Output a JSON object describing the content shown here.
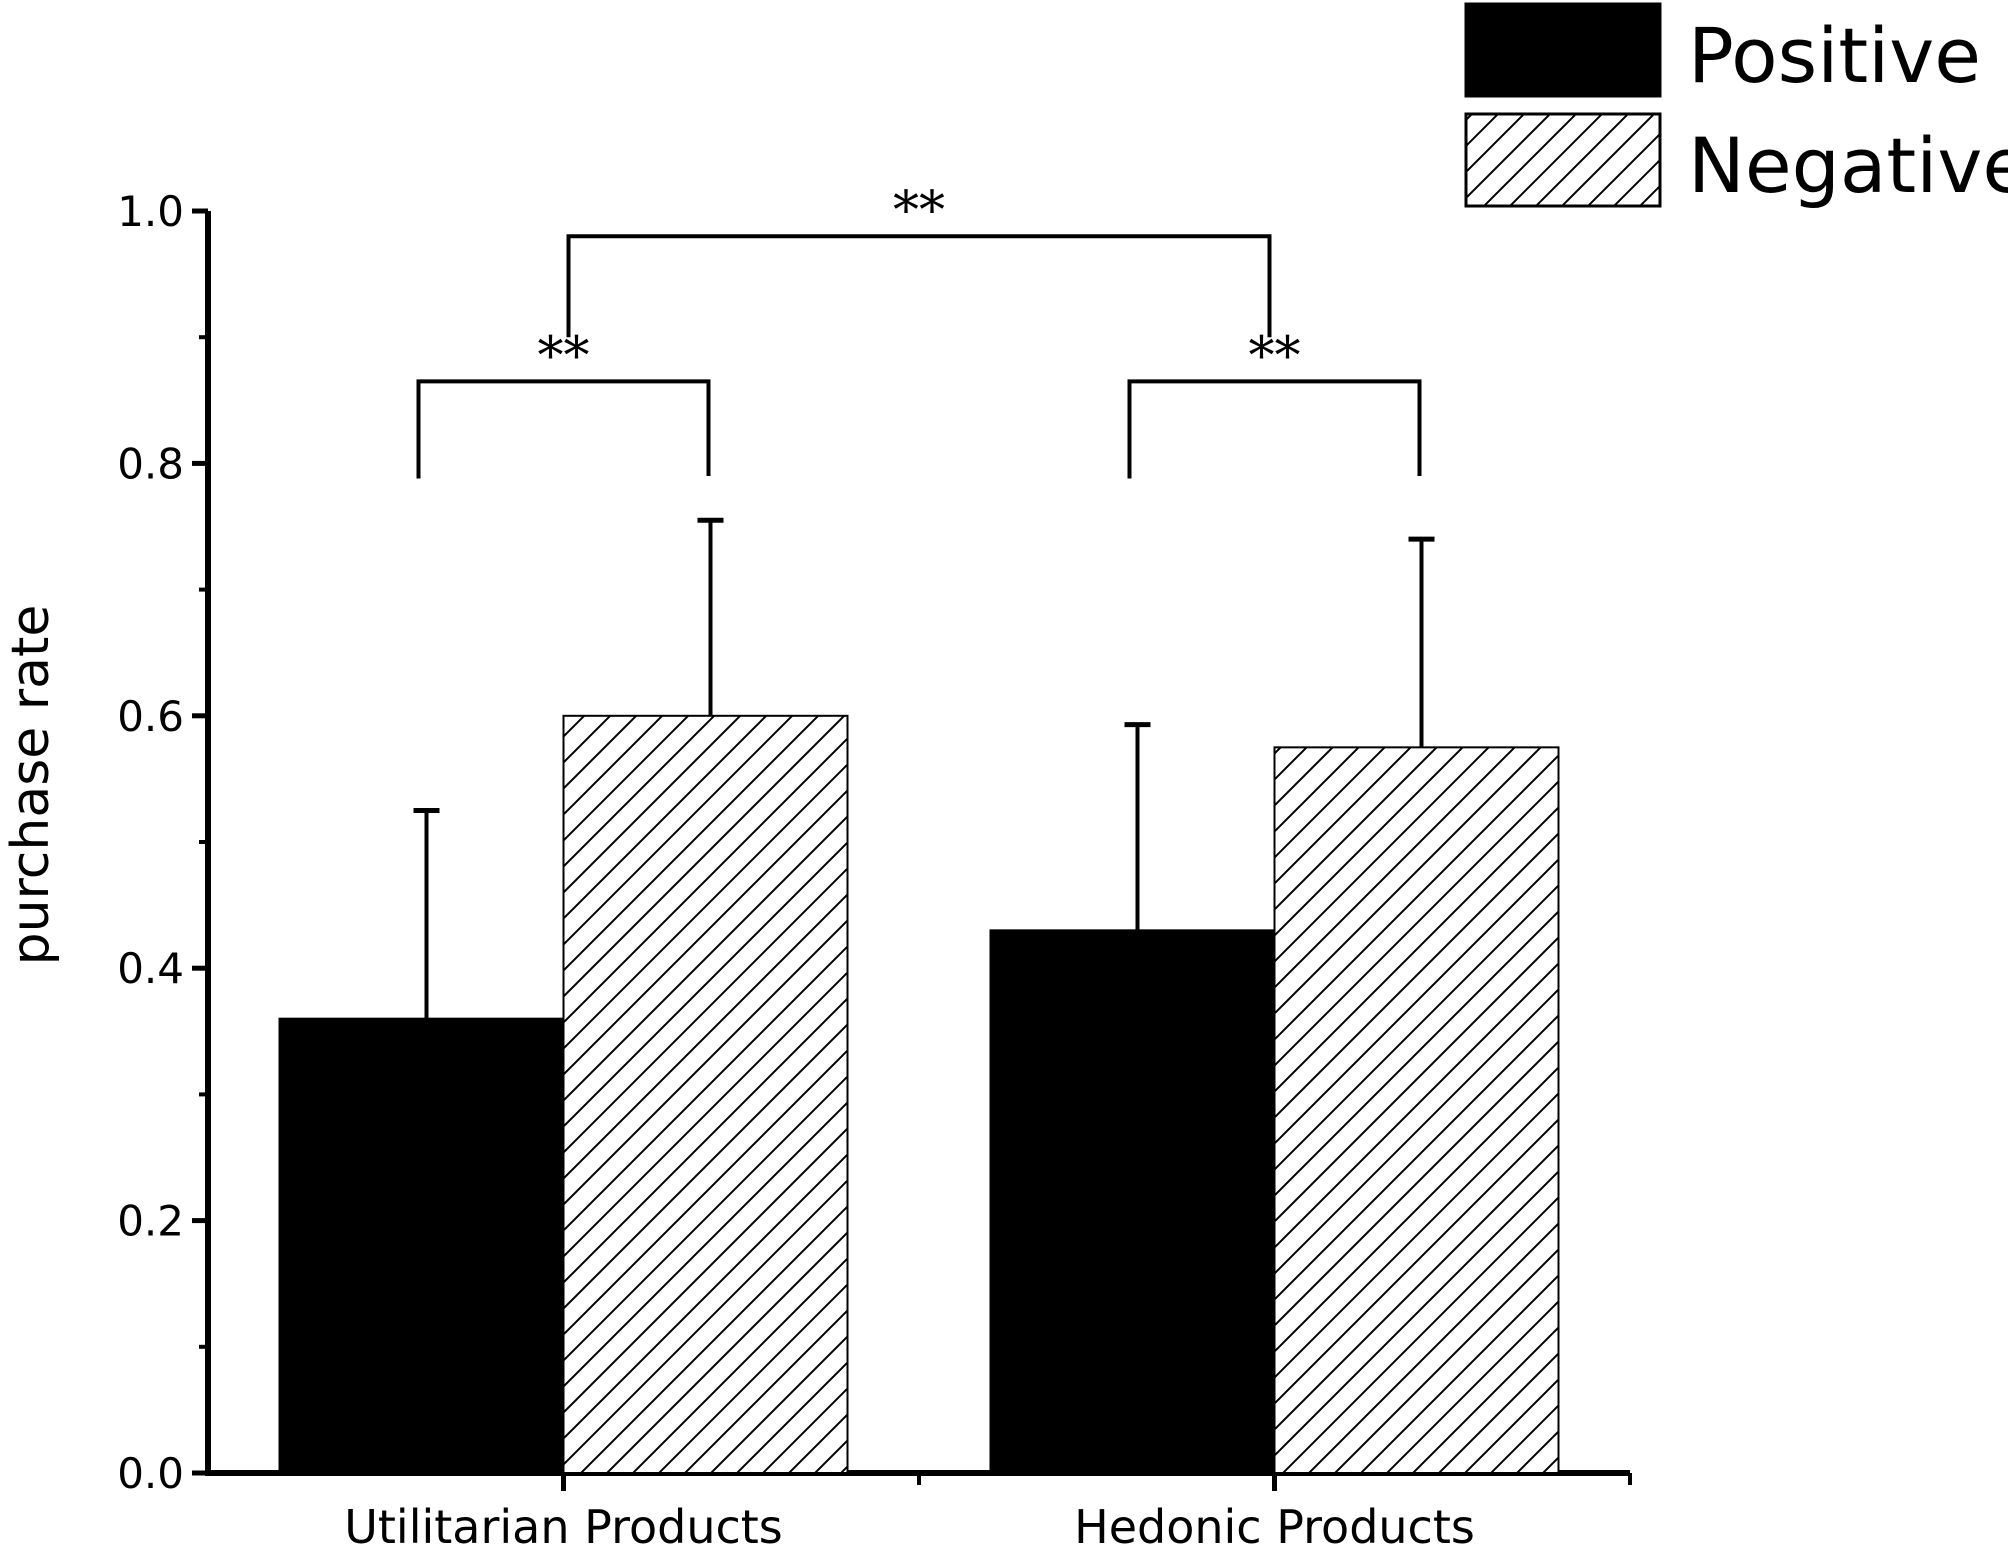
{
  "chart_data": {
    "type": "bar",
    "categories": [
      "Utilitarian  Products",
      "Hedonic  Products"
    ],
    "series": [
      {
        "name": "Positive",
        "values": [
          0.36,
          0.43
        ],
        "errors": [
          0.165,
          0.163
        ],
        "pattern": "solid",
        "color": "#000000"
      },
      {
        "name": "Negative",
        "values": [
          0.6,
          0.575
        ],
        "errors": [
          0.155,
          0.165
        ],
        "pattern": "hatch",
        "color": "#ffffff"
      }
    ],
    "ylabel": "purchase rate",
    "xlabel": "",
    "ylim": [
      0,
      1.0
    ],
    "yticks": [
      "0.0",
      "0.2",
      "0.4",
      "0.6",
      "0.8",
      "1.0"
    ],
    "legend": {
      "position": "top-right"
    },
    "grid": false,
    "significance": [
      {
        "label": "**",
        "from": "Utilitarian  Products / Positive",
        "to": "Utilitarian  Products / Negative"
      },
      {
        "label": "**",
        "from": "Hedonic  Products / Positive",
        "to": "Hedonic  Products / Negative"
      },
      {
        "label": "**",
        "from": "Utilitarian  Products",
        "to": "Hedonic  Products"
      }
    ]
  }
}
